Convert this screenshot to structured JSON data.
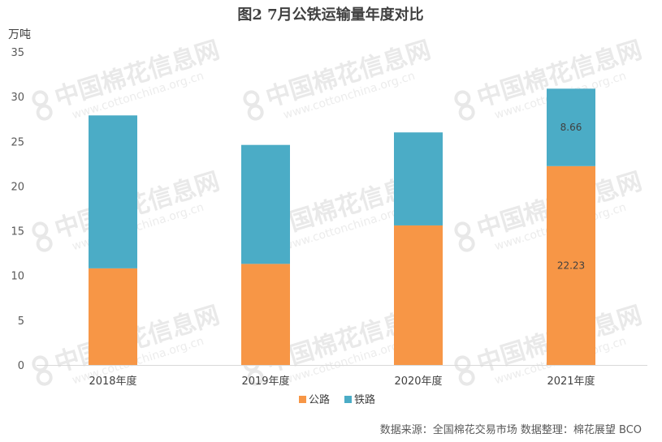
{
  "chart_data": {
    "type": "bar",
    "stacked": true,
    "title": "图2 7月公铁运输量年度对比",
    "ylabel": "万吨",
    "xlabel": "",
    "ylim": [
      0,
      35
    ],
    "yticks": [
      0,
      5,
      10,
      15,
      20,
      25,
      30,
      35
    ],
    "categories": [
      "2018年度",
      "2019年度",
      "2020年度",
      "2021年度"
    ],
    "series": [
      {
        "name": "公路",
        "color": "#f79646",
        "values": [
          10.8,
          11.3,
          15.6,
          22.23
        ]
      },
      {
        "name": "铁路",
        "color": "#4bacc6",
        "values": [
          17.1,
          13.3,
          10.4,
          8.66
        ]
      }
    ],
    "data_labels": [
      {
        "series": 0,
        "category": 3,
        "text": "22.23"
      },
      {
        "series": 1,
        "category": 3,
        "text": "8.66"
      }
    ],
    "grid": false,
    "legend": "bottom-center"
  },
  "source_note": "数据来源：全国棉花交易市场  数据整理：棉花展望 BCO",
  "watermark": {
    "text": "中国棉花信息网",
    "url": "www.cottonchina.org.cn"
  }
}
